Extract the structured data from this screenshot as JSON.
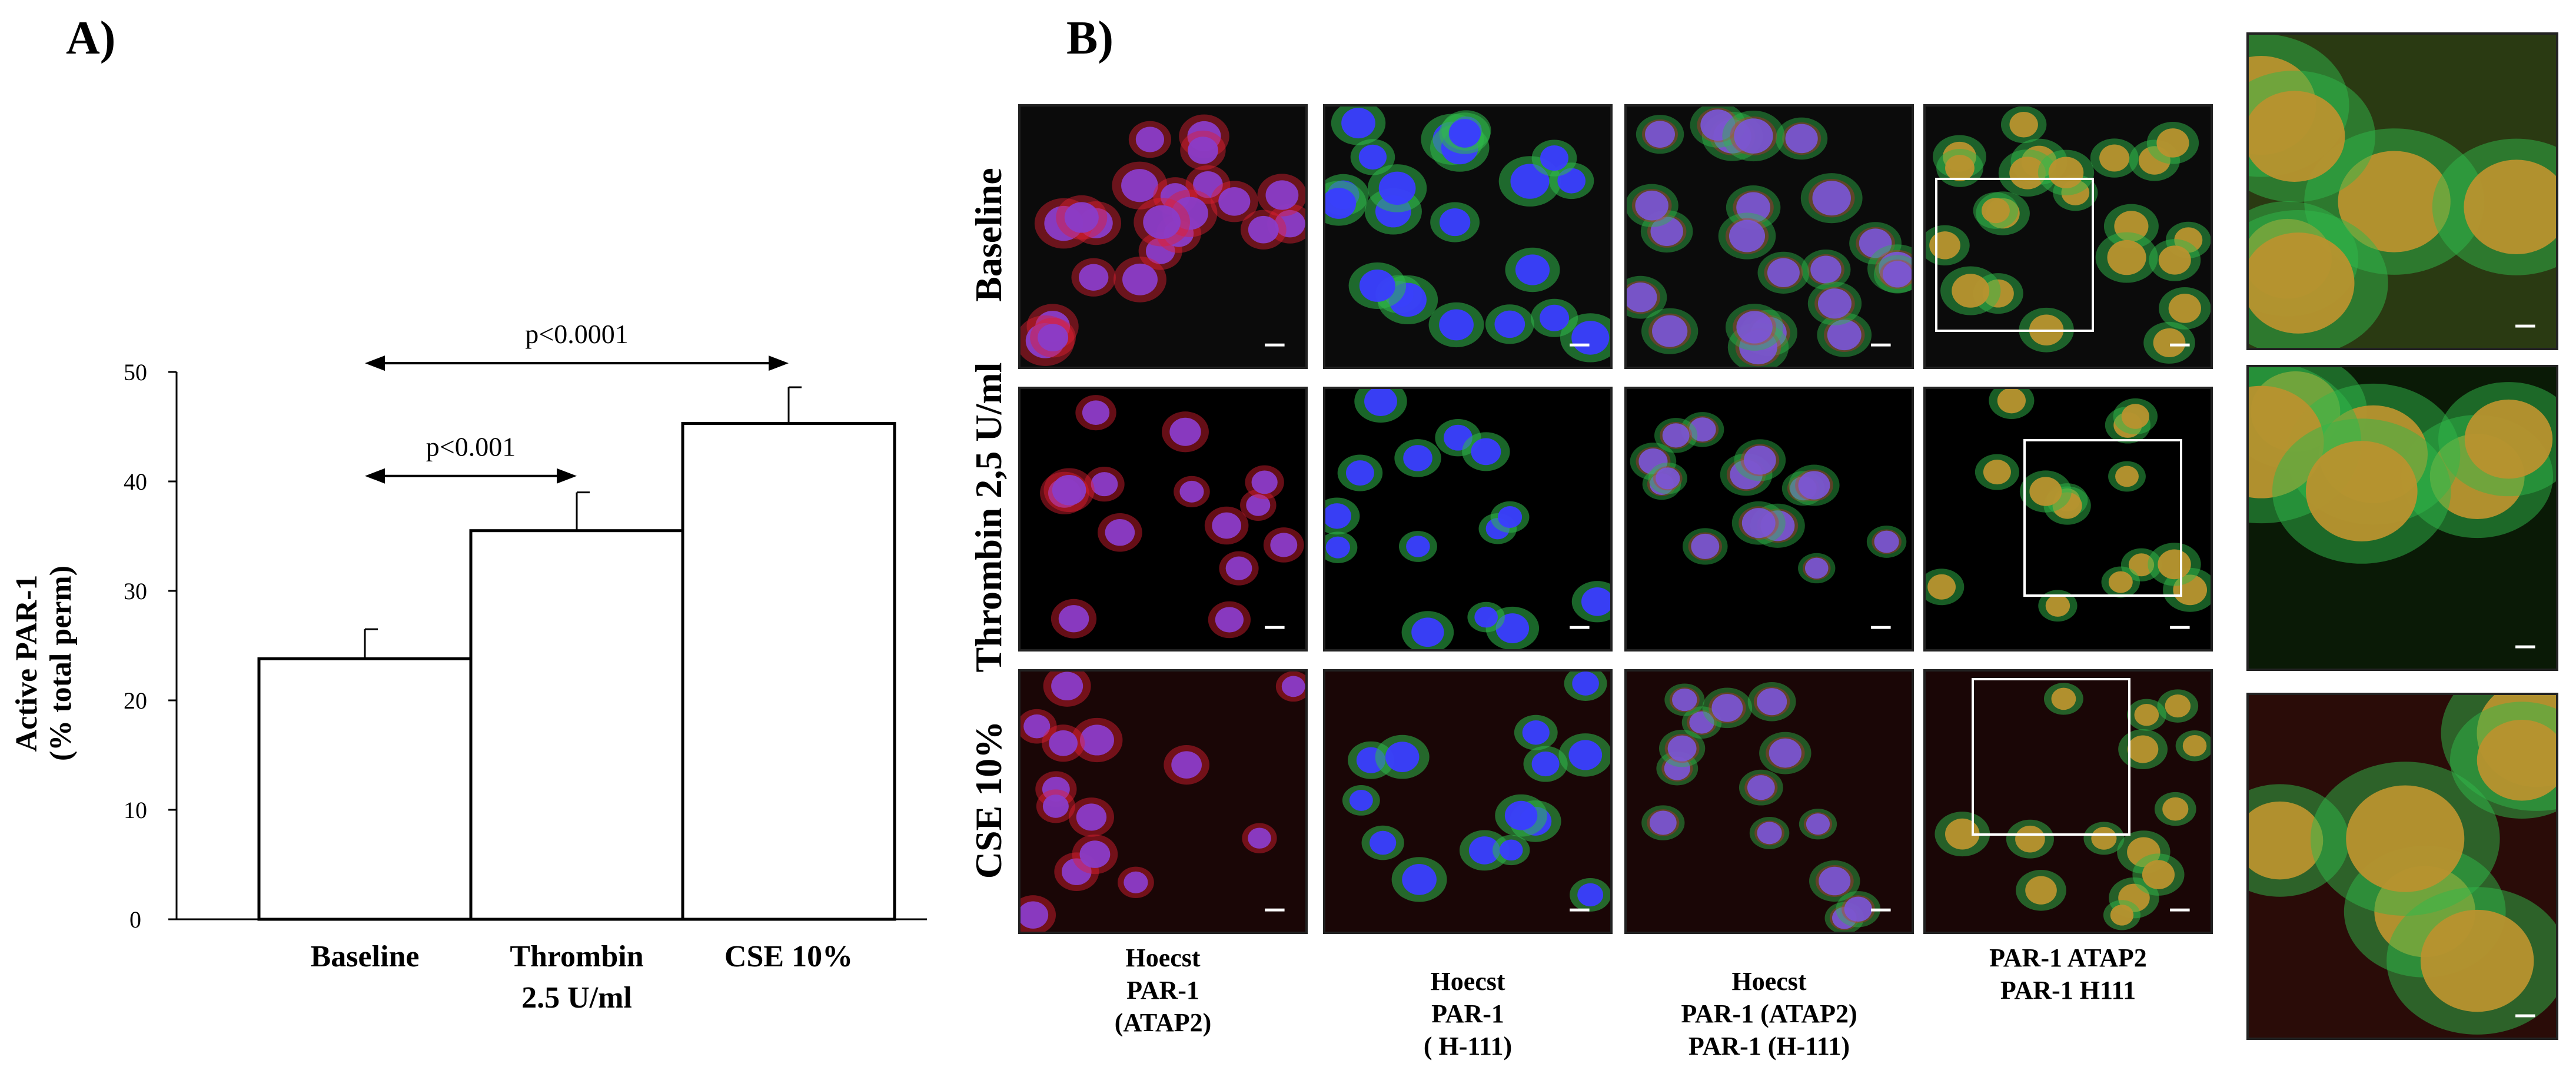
{
  "panels": {
    "a": "A)",
    "b": "B)"
  },
  "chart_data": {
    "type": "bar",
    "title": "",
    "ylabel_line1": "Active PAR-1",
    "ylabel_line2": "(% total perm)",
    "xlabel": "",
    "ylim": [
      0,
      50
    ],
    "yticks": [
      0,
      10,
      20,
      30,
      40,
      50
    ],
    "categories": [
      {
        "line1": "Baseline",
        "line2": ""
      },
      {
        "line1": "Thrombin",
        "line2": "2.5 U/ml"
      },
      {
        "line1": "CSE 10%",
        "line2": ""
      }
    ],
    "values": [
      23.8,
      35.5,
      45.3
    ],
    "errors": [
      2.7,
      3.5,
      3.3
    ],
    "colors": {
      "bar_fill": "#ffffff",
      "bar_stroke": "#000000"
    },
    "annotations": [
      {
        "text": "p<0.001",
        "from": 0,
        "to": 1,
        "y": 40.5
      },
      {
        "text": "p<0.0001",
        "from": 0,
        "to": 2,
        "y": 50.8
      }
    ]
  },
  "micrographs": {
    "row_labels": [
      "Baseline",
      "Thrombin 2,5 U/ml",
      "CSE 10%"
    ],
    "column_labels": [
      [
        "Hoecst",
        "PAR-1",
        "(ATAP2)"
      ],
      [
        "Hoecst",
        "PAR-1",
        "( H-111)"
      ],
      [
        "Hoecst",
        "PAR-1 (ATAP2)",
        "PAR-1 (H-111)"
      ],
      [
        "PAR-1 ATAP2",
        "PAR-1 H111"
      ]
    ],
    "channel_colors": {
      "nucleus": "#3a3cff",
      "atap2": "#e02030",
      "h111": "#2fb84a",
      "merge": "#b8922e"
    }
  }
}
